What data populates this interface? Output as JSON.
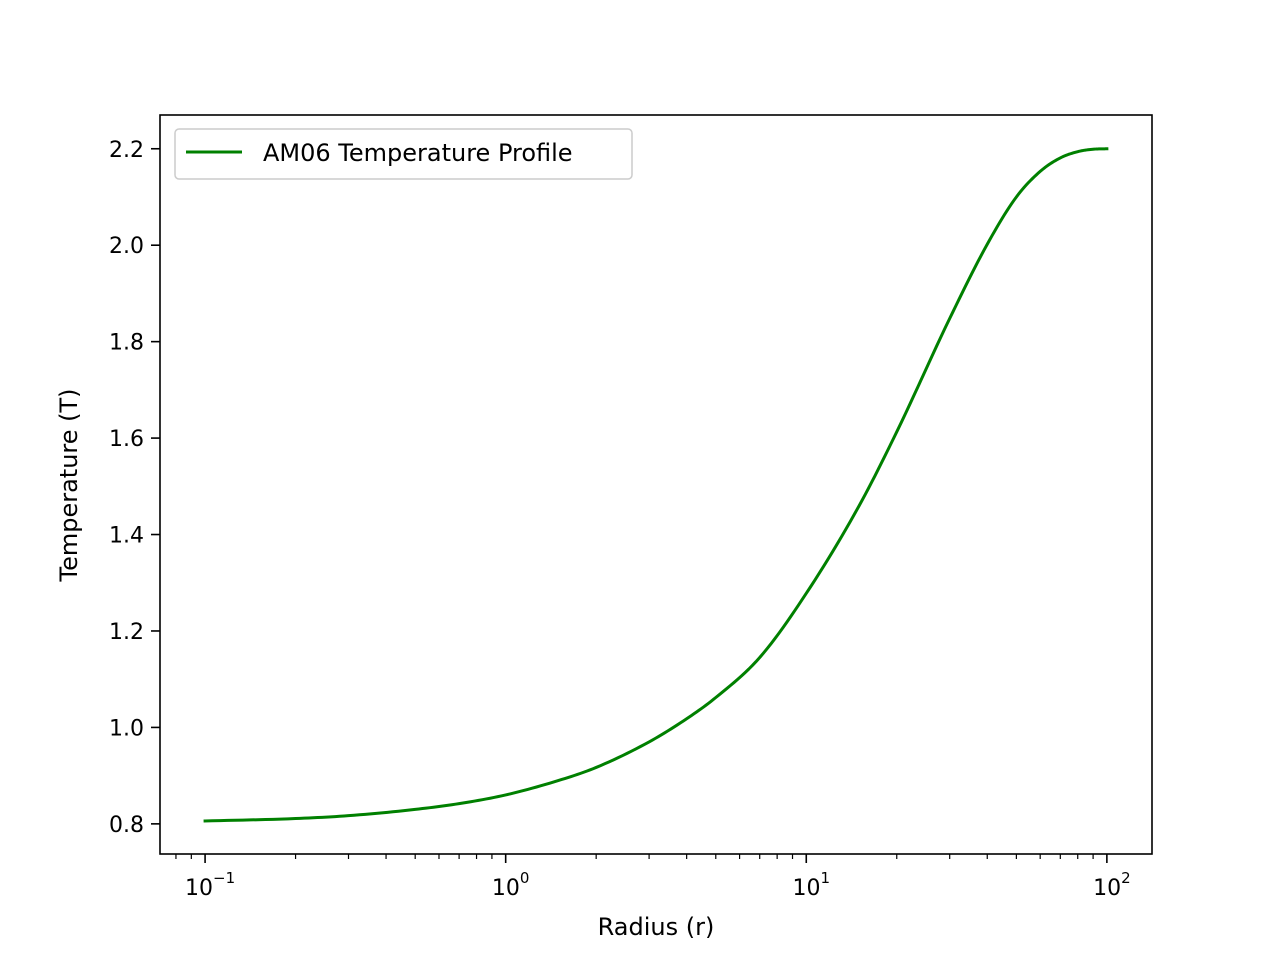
{
  "chart_data": {
    "type": "line",
    "xlabel": "Radius (r)",
    "ylabel": "Temperature (T)",
    "xscale": "log",
    "xlim": [
      0.0708,
      141.3
    ],
    "ylim": [
      0.7375,
      2.27
    ],
    "grid": false,
    "legend_position": "top-left",
    "x_ticks": [
      {
        "base": "10",
        "exp": "−1",
        "value": 0.1
      },
      {
        "base": "10",
        "exp": "0",
        "value": 1
      },
      {
        "base": "10",
        "exp": "1",
        "value": 10
      },
      {
        "base": "10",
        "exp": "2",
        "value": 100
      }
    ],
    "y_ticks": [
      "0.8",
      "1.0",
      "1.2",
      "1.4",
      "1.6",
      "1.8",
      "2.0",
      "2.2"
    ],
    "series": [
      {
        "name": "AM06 Temperature Profile",
        "color": "#008000",
        "x": [
          0.1,
          0.2,
          0.3,
          0.5,
          0.7,
          1.0,
          1.5,
          2.0,
          3.0,
          4.0,
          5.0,
          7.0,
          10.0,
          15.0,
          20.0,
          30.0,
          40.0,
          50.0,
          60.0,
          70.0,
          80.0,
          90.0,
          100.0
        ],
        "y": [
          0.806,
          0.811,
          0.817,
          0.83,
          0.842,
          0.86,
          0.89,
          0.917,
          0.97,
          1.018,
          1.062,
          1.145,
          1.278,
          1.46,
          1.613,
          1.848,
          2.002,
          2.1,
          2.153,
          2.181,
          2.194,
          2.199,
          2.2
        ]
      }
    ]
  }
}
